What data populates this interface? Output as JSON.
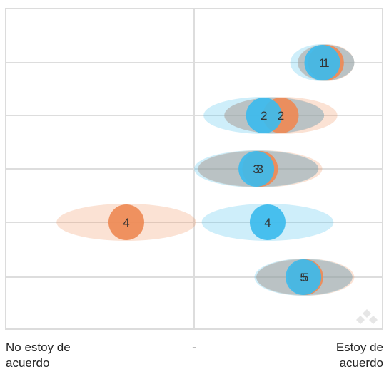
{
  "chart_data": {
    "type": "scatter",
    "x_min_label": "No estoy de acuerdo",
    "x_mid_label": "-",
    "x_max_label": "Estoy de acuerdo",
    "xlim": [
      -1,
      1
    ],
    "grid": true,
    "series": [
      {
        "color": "#ee8a55",
        "points": [
          {
            "label": "1",
            "x": 0.7,
            "spread": 0.15
          },
          {
            "label": "2",
            "x": 0.46,
            "spread": 0.3
          },
          {
            "label": "3",
            "x": 0.35,
            "spread": 0.33
          },
          {
            "label": "4",
            "x": -0.36,
            "spread": 0.37
          },
          {
            "label": "5",
            "x": 0.59,
            "spread": 0.26
          }
        ]
      },
      {
        "color": "#3cbbed",
        "points": [
          {
            "label": "1",
            "x": 0.68,
            "spread": 0.17
          },
          {
            "label": "2",
            "x": 0.37,
            "spread": 0.32
          },
          {
            "label": "3",
            "x": 0.33,
            "spread": 0.33
          },
          {
            "label": "4",
            "x": 0.39,
            "spread": 0.35
          },
          {
            "label": "5",
            "x": 0.58,
            "spread": 0.26
          }
        ]
      }
    ]
  },
  "axis_labels": {
    "left": "No estoy de\nacuerdo",
    "middle": "-",
    "right": "Estoy de\nacuerdo"
  }
}
